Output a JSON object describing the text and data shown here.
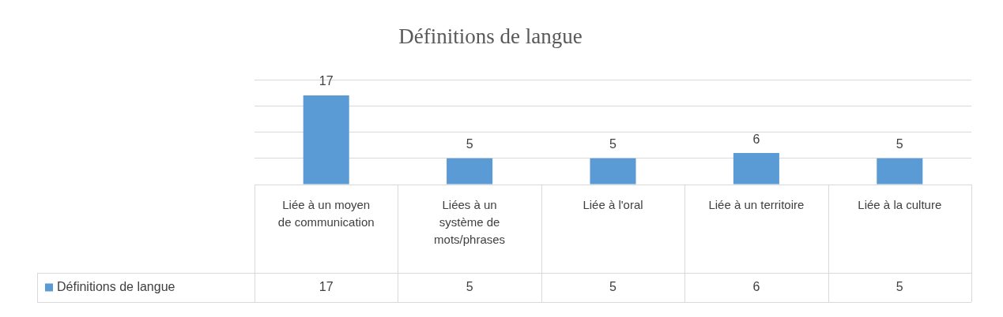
{
  "chart_data": {
    "type": "bar",
    "title": "Définitions de langue",
    "categories": [
      "Liée à un moyen de communication",
      "Liées à un système de mots/phrases",
      "Liée à l'oral",
      "Liée à un territoire",
      "Liée à la culture"
    ],
    "series": [
      {
        "name": "Définitions de langue",
        "color": "#5b9bd5",
        "values": [
          17,
          5,
          5,
          6,
          5
        ],
        "value_labels": [
          "17",
          "5",
          "5",
          "6",
          "5"
        ]
      }
    ],
    "annotations": [
      "17",
      "5",
      "5",
      "6",
      "5"
    ],
    "ylim": [
      0,
      20
    ],
    "yticks": [
      0,
      5,
      10,
      15,
      20
    ],
    "tick_labels": "x",
    "grid": "y",
    "legend": "bottom",
    "data_labels": true
  }
}
